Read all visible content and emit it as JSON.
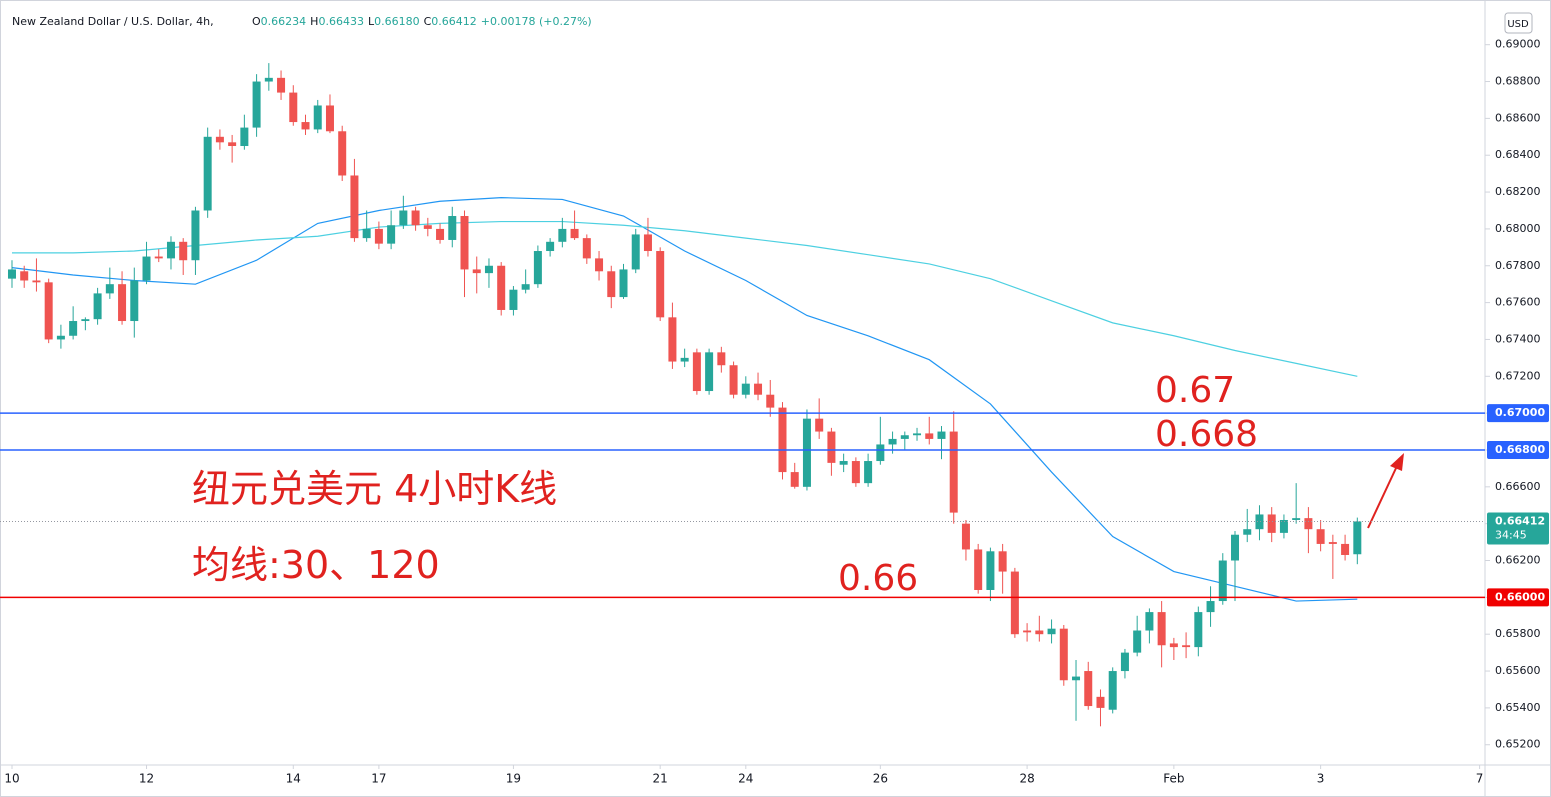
{
  "header": {
    "symbol": "New Zealand Dollar / U.S. Dollar, 4h,",
    "ohlc": [
      {
        "key": "O",
        "value": "0.66234"
      },
      {
        "key": "H",
        "value": "0.66433"
      },
      {
        "key": "L",
        "value": "0.66180"
      },
      {
        "key": "C",
        "value": "0.66412"
      }
    ],
    "change": "+0.00178 (+0.27%)"
  },
  "chart_data": {
    "type": "candlestick",
    "currency": "USD",
    "up_color": "#26a69a",
    "down_color": "#ef5350",
    "open": [
      0.6773,
      0.6777,
      0.6772,
      0.6771,
      0.674,
      0.6742,
      0.675,
      0.6751,
      0.6765,
      0.677,
      0.675,
      0.6772,
      0.6785,
      0.6784,
      0.6793,
      0.6783,
      0.681,
      0.685,
      0.6847,
      0.6845,
      0.6855,
      0.688,
      0.6882,
      0.6874,
      0.6858,
      0.6854,
      0.6867,
      0.6853,
      0.6829,
      0.6795,
      0.68,
      0.6792,
      0.6802,
      0.681,
      0.6802,
      0.68,
      0.6794,
      0.6807,
      0.6778,
      0.6776,
      0.678,
      0.6756,
      0.6767,
      0.677,
      0.6788,
      0.6793,
      0.68,
      0.6795,
      0.6784,
      0.6777,
      0.6763,
      0.6778,
      0.6797,
      0.6788,
      0.6752,
      0.6728,
      0.6733,
      0.6712,
      0.6733,
      0.6726,
      0.671,
      0.6716,
      0.671,
      0.6703,
      0.6668,
      0.666,
      0.6697,
      0.669,
      0.6672,
      0.6674,
      0.6662,
      0.6674,
      0.6683,
      0.6686,
      0.6688,
      0.6689,
      0.6686,
      0.669,
      0.664,
      0.6626,
      0.6604,
      0.6625,
      0.6614,
      0.6582,
      0.6582,
      0.658,
      0.6583,
      0.6555,
      0.656,
      0.6546,
      0.6539,
      0.656,
      0.657,
      0.6582,
      0.6592,
      0.6575,
      0.6574,
      0.6573,
      0.6592,
      0.6598,
      0.662,
      0.6634,
      0.6637,
      0.6645,
      0.6635,
      0.6642,
      0.6643,
      0.6637,
      0.663,
      0.6629,
      0.66234
    ],
    "high": [
      0.6783,
      0.678,
      0.6784,
      0.6773,
      0.6748,
      0.6758,
      0.6752,
      0.6768,
      0.6779,
      0.6777,
      0.6779,
      0.6793,
      0.6789,
      0.6796,
      0.6795,
      0.6812,
      0.6855,
      0.6854,
      0.6851,
      0.6862,
      0.6884,
      0.689,
      0.6886,
      0.6878,
      0.6862,
      0.687,
      0.6873,
      0.6856,
      0.6838,
      0.681,
      0.6804,
      0.681,
      0.6818,
      0.6812,
      0.6806,
      0.6803,
      0.6812,
      0.681,
      0.6785,
      0.6784,
      0.6782,
      0.6769,
      0.6778,
      0.6791,
      0.6795,
      0.6806,
      0.681,
      0.6797,
      0.6788,
      0.678,
      0.6781,
      0.68,
      0.6806,
      0.679,
      0.676,
      0.6735,
      0.6735,
      0.6735,
      0.6736,
      0.6728,
      0.672,
      0.6722,
      0.6718,
      0.6706,
      0.6673,
      0.6702,
      0.6708,
      0.6692,
      0.6678,
      0.6676,
      0.6678,
      0.6698,
      0.669,
      0.669,
      0.6692,
      0.6698,
      0.6693,
      0.6701,
      0.6642,
      0.6629,
      0.6627,
      0.6629,
      0.6616,
      0.6586,
      0.659,
      0.6588,
      0.6585,
      0.6566,
      0.6565,
      0.655,
      0.6562,
      0.6572,
      0.659,
      0.6594,
      0.6598,
      0.6578,
      0.6581,
      0.6595,
      0.6606,
      0.6624,
      0.6636,
      0.6648,
      0.665,
      0.6649,
      0.6645,
      0.6662,
      0.6649,
      0.6642,
      0.6634,
      0.6634,
      0.66433
    ],
    "low": [
      0.6768,
      0.6768,
      0.6766,
      0.6738,
      0.6735,
      0.674,
      0.6745,
      0.6748,
      0.6762,
      0.6748,
      0.6741,
      0.677,
      0.6782,
      0.6778,
      0.6775,
      0.6775,
      0.6806,
      0.6843,
      0.6836,
      0.6843,
      0.685,
      0.6875,
      0.687,
      0.6856,
      0.6851,
      0.6852,
      0.6852,
      0.6826,
      0.6793,
      0.6793,
      0.6789,
      0.6789,
      0.68,
      0.6799,
      0.6796,
      0.6792,
      0.679,
      0.6763,
      0.6765,
      0.6768,
      0.6753,
      0.6753,
      0.6765,
      0.6768,
      0.6785,
      0.679,
      0.6794,
      0.6781,
      0.6772,
      0.6757,
      0.6762,
      0.6776,
      0.6785,
      0.675,
      0.6724,
      0.6725,
      0.671,
      0.671,
      0.6722,
      0.6708,
      0.6708,
      0.6707,
      0.6698,
      0.6664,
      0.6659,
      0.6658,
      0.6686,
      0.6666,
      0.6668,
      0.666,
      0.666,
      0.6672,
      0.6678,
      0.668,
      0.6685,
      0.6683,
      0.6675,
      0.664,
      0.662,
      0.6602,
      0.6598,
      0.6602,
      0.6578,
      0.6576,
      0.6576,
      0.6575,
      0.6552,
      0.6533,
      0.6539,
      0.653,
      0.6537,
      0.6556,
      0.6568,
      0.6575,
      0.6562,
      0.6566,
      0.6567,
      0.6568,
      0.6584,
      0.6596,
      0.6598,
      0.663,
      0.6631,
      0.663,
      0.6632,
      0.664,
      0.6624,
      0.6625,
      0.661,
      0.662,
      0.6618
    ],
    "close": [
      0.6778,
      0.6772,
      0.6771,
      0.674,
      0.6742,
      0.675,
      0.6751,
      0.6765,
      0.677,
      0.675,
      0.6772,
      0.6785,
      0.6784,
      0.6793,
      0.6783,
      0.681,
      0.685,
      0.6847,
      0.6845,
      0.6855,
      0.688,
      0.6882,
      0.6874,
      0.6858,
      0.6854,
      0.6867,
      0.6853,
      0.6829,
      0.6795,
      0.68,
      0.6792,
      0.6802,
      0.681,
      0.6802,
      0.68,
      0.6794,
      0.6807,
      0.6778,
      0.6776,
      0.678,
      0.6756,
      0.6767,
      0.677,
      0.6788,
      0.6793,
      0.68,
      0.6795,
      0.6784,
      0.6777,
      0.6763,
      0.6778,
      0.6797,
      0.6788,
      0.6752,
      0.6728,
      0.673,
      0.6712,
      0.6733,
      0.6726,
      0.671,
      0.6716,
      0.671,
      0.6703,
      0.6668,
      0.666,
      0.6697,
      0.669,
      0.6673,
      0.6674,
      0.6662,
      0.6674,
      0.6683,
      0.6686,
      0.6688,
      0.6689,
      0.6686,
      0.669,
      0.6646,
      0.6626,
      0.6604,
      0.6625,
      0.6614,
      0.658,
      0.6581,
      0.658,
      0.6583,
      0.6555,
      0.6557,
      0.6541,
      0.654,
      0.656,
      0.657,
      0.6582,
      0.6592,
      0.6574,
      0.6573,
      0.6573,
      0.6592,
      0.6598,
      0.662,
      0.6634,
      0.6637,
      0.6645,
      0.6635,
      0.6642,
      0.6643,
      0.6637,
      0.6629,
      0.6629,
      0.6623,
      0.66412
    ],
    "xlim": [
      -0.98,
      120.44
    ],
    "xticks": [
      {
        "value": 0,
        "label": "10"
      },
      {
        "value": 11,
        "label": "12"
      },
      {
        "value": 23,
        "label": "14"
      },
      {
        "value": 30,
        "label": "17"
      },
      {
        "value": 41,
        "label": "19"
      },
      {
        "value": 53,
        "label": "21"
      },
      {
        "value": 60,
        "label": "24"
      },
      {
        "value": 71,
        "label": "26"
      },
      {
        "value": 83,
        "label": "28"
      },
      {
        "value": 95,
        "label": "Feb"
      },
      {
        "value": 107,
        "label": "3"
      },
      {
        "value": 120,
        "label": "7"
      }
    ],
    "ylim": [
      0.6509,
      0.6921
    ],
    "yticks": [
      {
        "value": 0.652,
        "label": "0.65200"
      },
      {
        "value": 0.654,
        "label": "0.65400"
      },
      {
        "value": 0.656,
        "label": "0.65600"
      },
      {
        "value": 0.658,
        "label": "0.65800"
      },
      {
        "value": 0.66,
        "label": "0.66000"
      },
      {
        "value": 0.662,
        "label": "0.66200"
      },
      {
        "value": 0.664,
        "label": "0.66400"
      },
      {
        "value": 0.666,
        "label": "0.66600"
      },
      {
        "value": 0.668,
        "label": "0.66800"
      },
      {
        "value": 0.67,
        "label": "0.67000"
      },
      {
        "value": 0.672,
        "label": "0.67200"
      },
      {
        "value": 0.674,
        "label": "0.67400"
      },
      {
        "value": 0.676,
        "label": "0.67600"
      },
      {
        "value": 0.678,
        "label": "0.67800"
      },
      {
        "value": 0.68,
        "label": "0.68000"
      },
      {
        "value": 0.682,
        "label": "0.68200"
      },
      {
        "value": 0.684,
        "label": "0.68400"
      },
      {
        "value": 0.686,
        "label": "0.68600"
      },
      {
        "value": 0.688,
        "label": "0.68800"
      },
      {
        "value": 0.69,
        "label": "0.69000"
      }
    ],
    "moving_averages": [
      {
        "color": "#2196f3",
        "x": [
          0,
          5,
          10,
          15,
          20,
          25,
          30,
          35,
          40,
          45,
          50,
          55,
          60,
          65,
          70,
          75,
          80,
          85,
          90,
          95,
          100,
          105,
          110
        ],
        "values": [
          0.6779,
          0.6775,
          0.6772,
          0.677,
          0.6783,
          0.6803,
          0.681,
          0.6815,
          0.6817,
          0.6816,
          0.6807,
          0.6788,
          0.6772,
          0.6753,
          0.6742,
          0.6729,
          0.6705,
          0.6668,
          0.6633,
          0.6614,
          0.6606,
          0.6598,
          0.6599
        ]
      },
      {
        "color": "#4dd0e1",
        "x": [
          0,
          5,
          10,
          15,
          20,
          25,
          30,
          35,
          40,
          45,
          50,
          55,
          60,
          65,
          70,
          75,
          80,
          85,
          90,
          95,
          100,
          105,
          110
        ],
        "values": [
          0.6787,
          0.6787,
          0.6788,
          0.6791,
          0.6794,
          0.6796,
          0.6801,
          0.6803,
          0.6804,
          0.6804,
          0.6802,
          0.6799,
          0.6795,
          0.6791,
          0.6786,
          0.6781,
          0.6773,
          0.6761,
          0.6749,
          0.6742,
          0.6734,
          0.6727,
          0.672
        ]
      }
    ],
    "hlines": [
      {
        "value": 0.67,
        "label": "0.67000",
        "color": "#2962ff"
      },
      {
        "value": 0.668,
        "label": "0.66800",
        "color": "#2962ff"
      },
      {
        "value": 0.66,
        "label": "0.66000",
        "color": "#f00000"
      }
    ],
    "price_line": {
      "value": 0.66412,
      "label": "0.66412",
      "countdown": "34:45",
      "color": "#26a69a"
    },
    "annotations": [
      "纽元兑美元 4小时K线",
      "均线:30、120",
      "0.67",
      "0.668",
      "0.66"
    ]
  }
}
